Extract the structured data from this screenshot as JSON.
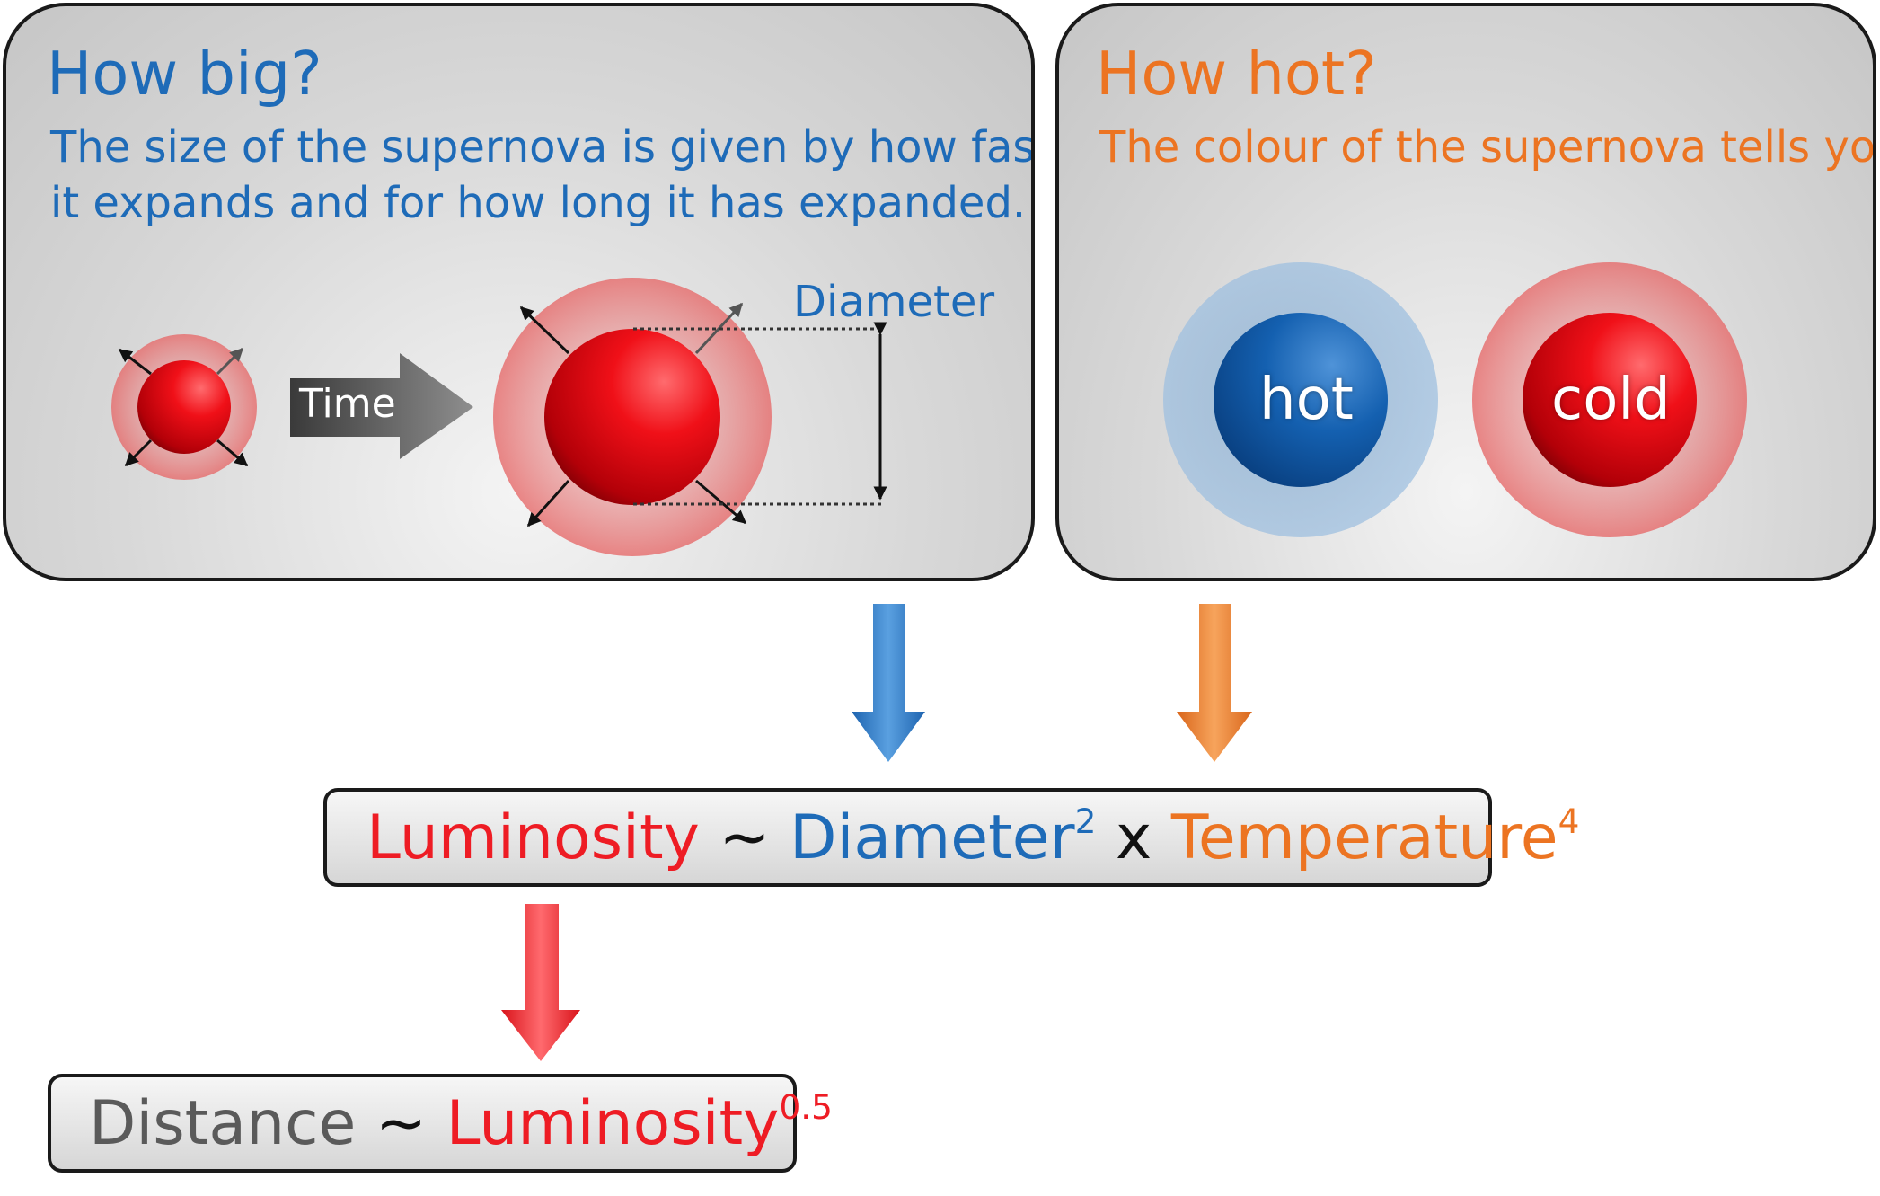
{
  "size_panel": {
    "title": "How big?",
    "text_line1": "The size of the supernova is given by how fast",
    "text_line2": "it expands and for how long it has expanded.",
    "time_label": "Time",
    "diameter_label": "Diameter"
  },
  "temp_panel": {
    "title": "How hot?",
    "text": "The colour of the supernova tells you!",
    "hot_label": "hot",
    "cold_label": "cold"
  },
  "luminosity_formula": {
    "lhs": "Luminosity",
    "tilde": "~",
    "diameter": "Diameter",
    "diameter_exp": "2",
    "times": "x",
    "temperature": "Temperature",
    "temperature_exp": "4"
  },
  "distance_formula": {
    "lhs": "Distance",
    "tilde": "~",
    "luminosity": "Luminosity",
    "exp": "0.5"
  },
  "colors": {
    "blue": "#1e6bb8",
    "orange": "#ec7422",
    "red": "#ee1c24",
    "grey": "#5a5a5a"
  }
}
